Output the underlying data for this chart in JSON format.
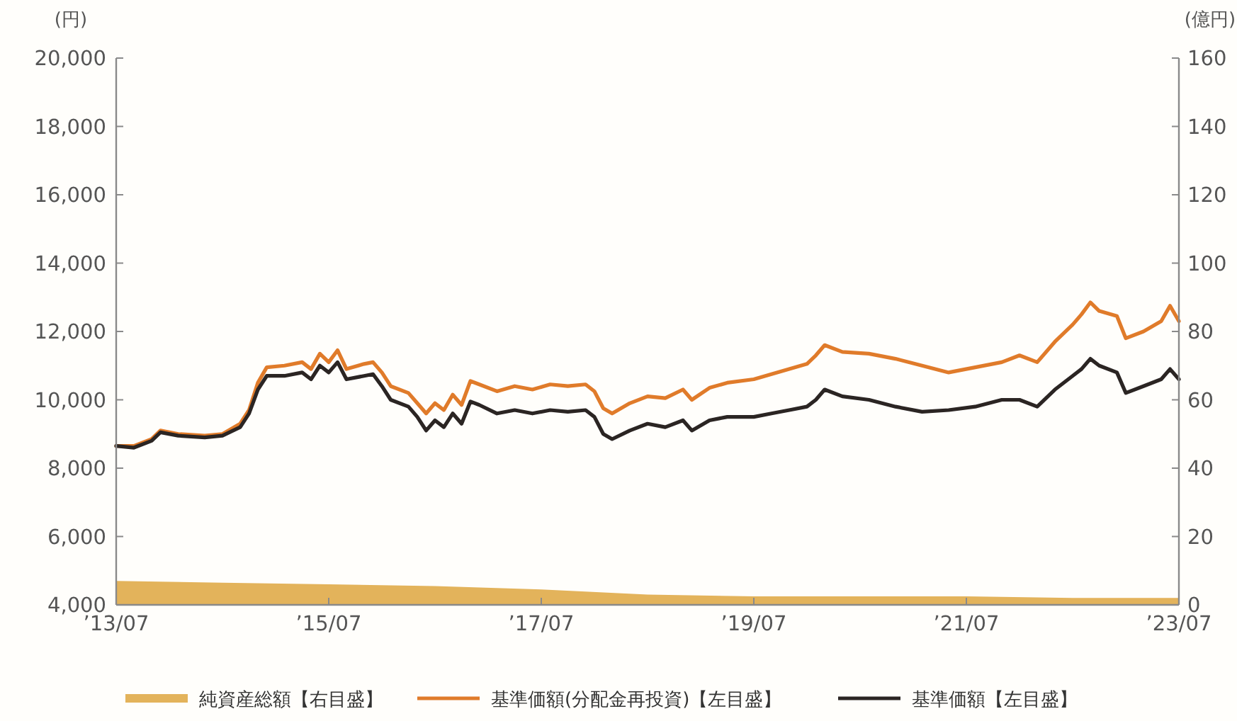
{
  "chart_data": {
    "type": "line",
    "ylabel": "(円)",
    "y2label": "(億円)",
    "x": [
      "2013-07",
      "2013-09",
      "2013-11",
      "2013-12",
      "2014-02",
      "2014-05",
      "2014-07",
      "2014-09",
      "2014-10",
      "2014-11",
      "2014-12",
      "2015-02",
      "2015-04",
      "2015-05",
      "2015-06",
      "2015-07",
      "2015-08",
      "2015-09",
      "2015-11",
      "2015-12",
      "2016-01",
      "2016-02",
      "2016-04",
      "2016-05",
      "2016-06",
      "2016-07",
      "2016-08",
      "2016-09",
      "2016-10",
      "2016-11",
      "2016-12",
      "2017-02",
      "2017-04",
      "2017-06",
      "2017-08",
      "2017-10",
      "2017-12",
      "2018-01",
      "2018-02",
      "2018-03",
      "2018-05",
      "2018-07",
      "2018-09",
      "2018-11",
      "2018-12",
      "2019-02",
      "2019-04",
      "2019-07",
      "2019-09",
      "2019-11",
      "2020-01",
      "2020-02",
      "2020-03",
      "2020-05",
      "2020-08",
      "2020-11",
      "2021-02",
      "2021-05",
      "2021-08",
      "2021-11",
      "2022-01",
      "2022-03",
      "2022-05",
      "2022-07",
      "2022-08",
      "2022-09",
      "2022-10",
      "2022-12",
      "2023-01",
      "2023-03",
      "2023-05",
      "2023-06",
      "2023-07"
    ],
    "series": [
      {
        "name": "純資産総額【右目盛】",
        "type": "area",
        "axis": "y2",
        "color": "#e3b35b",
        "x": [
          "2013-07",
          "2014-07",
          "2015-07",
          "2016-07",
          "2017-07",
          "2018-07",
          "2019-07",
          "2020-07",
          "2021-07",
          "2022-07",
          "2023-07"
        ],
        "values": [
          7,
          6.5,
          6,
          5.5,
          4.5,
          3,
          2.5,
          2.5,
          2.5,
          2,
          2
        ]
      },
      {
        "name": "基準価額(分配金再投資)【左目盛】",
        "color": "#e07b2a",
        "values": [
          8650,
          8650,
          8850,
          9100,
          9000,
          8950,
          9000,
          9300,
          9700,
          10500,
          10950,
          11000,
          11100,
          10900,
          11350,
          11100,
          11450,
          10900,
          11050,
          11100,
          10800,
          10400,
          10200,
          9900,
          9600,
          9900,
          9700,
          10150,
          9850,
          10550,
          10450,
          10250,
          10400,
          10300,
          10450,
          10400,
          10450,
          10250,
          9750,
          9600,
          9900,
          10100,
          10050,
          10300,
          10000,
          10350,
          10500,
          10600,
          10750,
          10900,
          11050,
          11300,
          11600,
          11400,
          11350,
          11200,
          11000,
          10800,
          10950,
          11100,
          11300,
          11100,
          11700,
          12200,
          12500,
          12850,
          12600,
          12450,
          11800,
          12000,
          12300,
          12750,
          12300
        ]
      },
      {
        "name": "基準価額【左目盛】",
        "color": "#2b2523",
        "values": [
          8650,
          8600,
          8800,
          9050,
          8950,
          8900,
          8950,
          9200,
          9600,
          10300,
          10700,
          10700,
          10800,
          10600,
          11000,
          10800,
          11100,
          10600,
          10700,
          10750,
          10400,
          10000,
          9800,
          9500,
          9100,
          9400,
          9200,
          9600,
          9300,
          9950,
          9850,
          9600,
          9700,
          9600,
          9700,
          9650,
          9700,
          9500,
          9000,
          8850,
          9100,
          9300,
          9200,
          9400,
          9100,
          9400,
          9500,
          9500,
          9600,
          9700,
          9800,
          10000,
          10300,
          10100,
          10000,
          9800,
          9650,
          9700,
          9800,
          10000,
          10000,
          9800,
          10300,
          10700,
          10900,
          11200,
          11000,
          10800,
          10200,
          10400,
          10600,
          10900,
          10600
        ]
      }
    ],
    "xlim": [
      "2013-07",
      "2023-07"
    ],
    "xticks": [
      {
        "value": "2013-07",
        "label": "’13/07"
      },
      {
        "value": "2015-07",
        "label": "’15/07"
      },
      {
        "value": "2017-07",
        "label": "’17/07"
      },
      {
        "value": "2019-07",
        "label": "’19/07"
      },
      {
        "value": "2021-07",
        "label": "’21/07"
      },
      {
        "value": "2023-07",
        "label": "’23/07"
      }
    ],
    "ylim": [
      4000,
      20000
    ],
    "yticks": [
      {
        "value": 4000,
        "label": "4,000"
      },
      {
        "value": 6000,
        "label": "6,000"
      },
      {
        "value": 8000,
        "label": "8,000"
      },
      {
        "value": 10000,
        "label": "10,000"
      },
      {
        "value": 12000,
        "label": "12,000"
      },
      {
        "value": 14000,
        "label": "14,000"
      },
      {
        "value": 16000,
        "label": "16,000"
      },
      {
        "value": 18000,
        "label": "18,000"
      },
      {
        "value": 20000,
        "label": "20,000"
      }
    ],
    "y2lim": [
      0,
      160
    ],
    "y2ticks": [
      0,
      20,
      40,
      60,
      80,
      100,
      120,
      140,
      160
    ],
    "grid": false,
    "legend": "bottom"
  }
}
